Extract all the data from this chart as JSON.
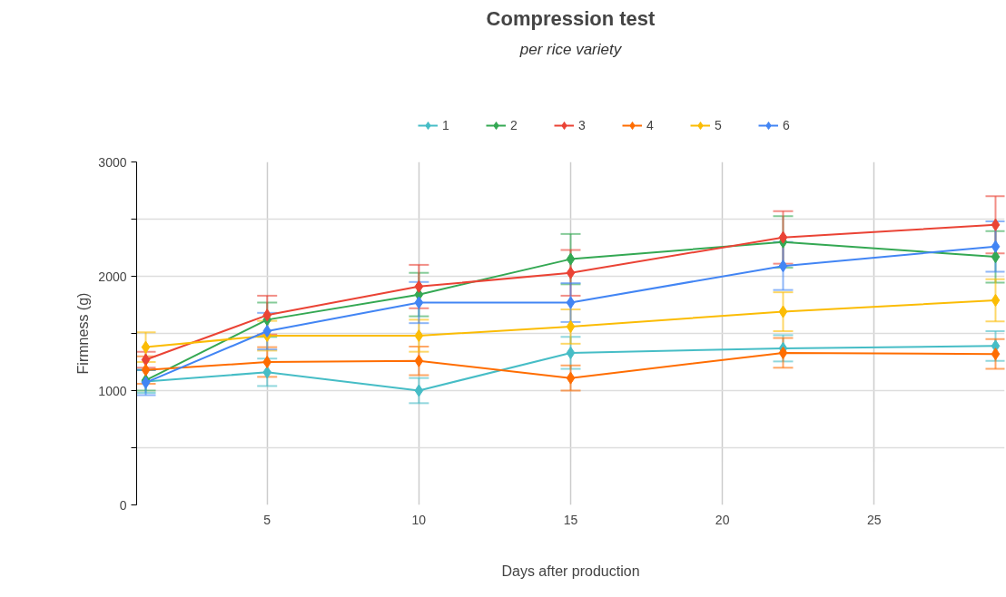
{
  "chart_data": {
    "type": "line",
    "title": "Compression test",
    "subtitle": "per rice variety",
    "xlabel": "Days after production",
    "ylabel": "Firmness (g)",
    "x": [
      1,
      5,
      10,
      15,
      22,
      29
    ],
    "xlim": [
      0.7,
      29.3
    ],
    "xticks": [
      5,
      10,
      15,
      20,
      25
    ],
    "ylim": [
      0,
      3000
    ],
    "yticks": [
      0,
      {
        "value": 500,
        "label": null
      },
      1000,
      {
        "value": 1500,
        "label": null
      },
      2000,
      {
        "value": 2500,
        "label": null
      },
      3000
    ],
    "grid": true,
    "legend": "top",
    "marker": "diamond",
    "line_style": "solid",
    "series": [
      {
        "name": "1",
        "color": "#46bdc6",
        "values": [
          1080,
          1160,
          1000,
          1330,
          1370,
          1390
        ],
        "errors": [
          100,
          120,
          110,
          140,
          115,
          130
        ]
      },
      {
        "name": "2",
        "color": "#34a853",
        "values": [
          1090,
          1620,
          1840,
          2150,
          2300,
          2170
        ],
        "errors": [
          90,
          150,
          190,
          220,
          225,
          225
        ]
      },
      {
        "name": "3",
        "color": "#ea4335",
        "values": [
          1270,
          1660,
          1910,
          2030,
          2340,
          2450
        ],
        "errors": [
          70,
          170,
          190,
          200,
          230,
          250
        ]
      },
      {
        "name": "4",
        "color": "#ff6d01",
        "values": [
          1180,
          1250,
          1260,
          1110,
          1330,
          1320
        ],
        "errors": [
          120,
          130,
          125,
          110,
          130,
          130
        ]
      },
      {
        "name": "5",
        "color": "#fbbc04",
        "values": [
          1380,
          1480,
          1480,
          1560,
          1690,
          1790
        ],
        "errors": [
          130,
          130,
          140,
          150,
          170,
          185
        ]
      },
      {
        "name": "6",
        "color": "#4285f4",
        "values": [
          1070,
          1520,
          1770,
          1770,
          2090,
          2260
        ],
        "errors": [
          110,
          160,
          180,
          170,
          210,
          220
        ]
      }
    ]
  }
}
